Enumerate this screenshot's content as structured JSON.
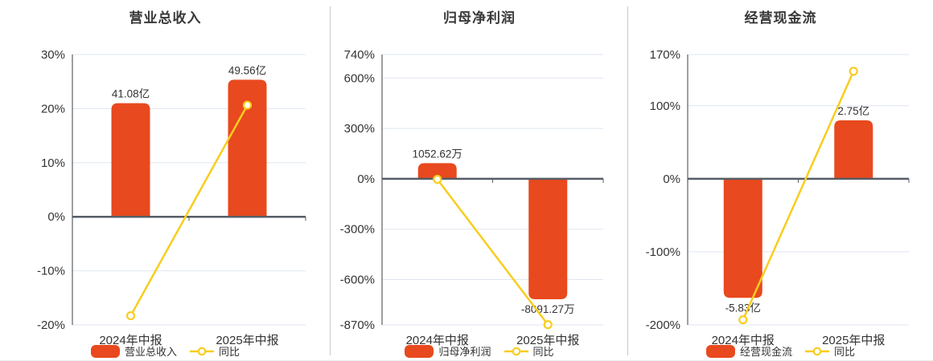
{
  "colors": {
    "bar": "#e8491e",
    "line": "#f8cd1e",
    "marker_fill": "#ffffff",
    "grid": "#dfe6f0",
    "axis": "#596066",
    "zero_line": "#565d66",
    "text": "#333333",
    "title": "#383838",
    "divider": "#c9c9c9",
    "background": "#ffffff"
  },
  "chart_data": [
    {
      "type": "bar+line",
      "title": "营业总收入",
      "categories": [
        "2024年中报",
        "2025年中报"
      ],
      "y_axis": {
        "unit": "%",
        "min": -20,
        "max": 30,
        "ticks": [
          30,
          20,
          10,
          0,
          -10,
          -20
        ],
        "grid": true
      },
      "bars": {
        "name": "营业总收入",
        "unit": "亿",
        "values": [
          41.08,
          49.56
        ],
        "value_labels": [
          "41.08亿",
          "49.56亿"
        ],
        "display_values_axis_units": [
          21.0,
          25.35
        ],
        "label_position": [
          "above",
          "above"
        ]
      },
      "line": {
        "name": "同比",
        "values_pct": [
          -18.3,
          20.64
        ]
      },
      "legend_position": "bottom"
    },
    {
      "type": "bar+line",
      "title": "归母净利润",
      "categories": [
        "2024年中报",
        "2025年中报"
      ],
      "y_axis": {
        "unit": "%",
        "min": -870,
        "max": 740,
        "ticks": [
          740,
          600,
          300,
          0,
          -300,
          -600,
          -870
        ],
        "grid": true
      },
      "bars": {
        "name": "归母净利润",
        "unit": "万",
        "values": [
          1052.62,
          -8091.27
        ],
        "value_labels": [
          "1052.62万",
          "-8091.27万"
        ],
        "display_values_axis_units": [
          93,
          -717
        ],
        "label_position": [
          "above",
          "below"
        ]
      },
      "line": {
        "name": "同比",
        "values_pct": [
          -3,
          -868.68
        ]
      },
      "legend_position": "bottom"
    },
    {
      "type": "bar+line",
      "title": "经营现金流",
      "categories": [
        "2024年中报",
        "2025年中报"
      ],
      "y_axis": {
        "unit": "%",
        "min": -200,
        "max": 170,
        "ticks": [
          170,
          100,
          0,
          -100,
          -200
        ],
        "grid": true
      },
      "bars": {
        "name": "经营现金流",
        "unit": "亿",
        "values": [
          -5.83,
          2.75
        ],
        "value_labels": [
          "-5.83亿",
          "2.75亿"
        ],
        "display_values_axis_units": [
          -163,
          80
        ],
        "label_position": [
          "below",
          "above"
        ]
      },
      "line": {
        "name": "同比",
        "values_pct": [
          -193,
          147.17
        ]
      },
      "legend_position": "bottom"
    }
  ]
}
